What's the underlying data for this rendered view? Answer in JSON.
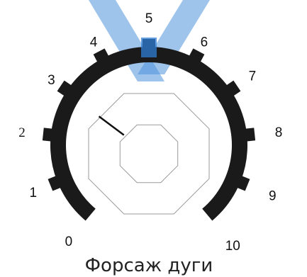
{
  "dial": {
    "title": "Форсаж дуги",
    "scale": {
      "min": 0,
      "max": 10
    },
    "ticks": [
      "0",
      "1",
      "2",
      "3",
      "4",
      "5",
      "6",
      "7",
      "8",
      "9",
      "10"
    ],
    "pointer_value": 3.1,
    "highlighted_value": 5,
    "colors": {
      "arc": "#1a1a1a",
      "pointer": "#111111",
      "knob_outline": "#9a9a9a",
      "watermark": "#2f7fd6"
    }
  }
}
